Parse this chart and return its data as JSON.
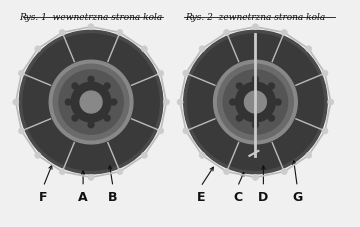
{
  "bg_color": "#f0f0f0",
  "fig_bg": "#f0f0f0",
  "title_left": "Rys. 1  wewnetrzna strona kola",
  "title_right": "Rys. 2  zewnetrzna strona kola",
  "title_fontsize": 6.5,
  "left_labels": [
    "F",
    "A",
    "B"
  ],
  "right_labels": [
    "E",
    "C",
    "D",
    "G"
  ],
  "label_fontsize": 9,
  "arrow_color": "#111111",
  "text_color": "#111111",
  "tire_color_outer": "#555555",
  "tire_color_inner": "#333333",
  "rim_color": "#888888",
  "chain_color": "#cccccc"
}
